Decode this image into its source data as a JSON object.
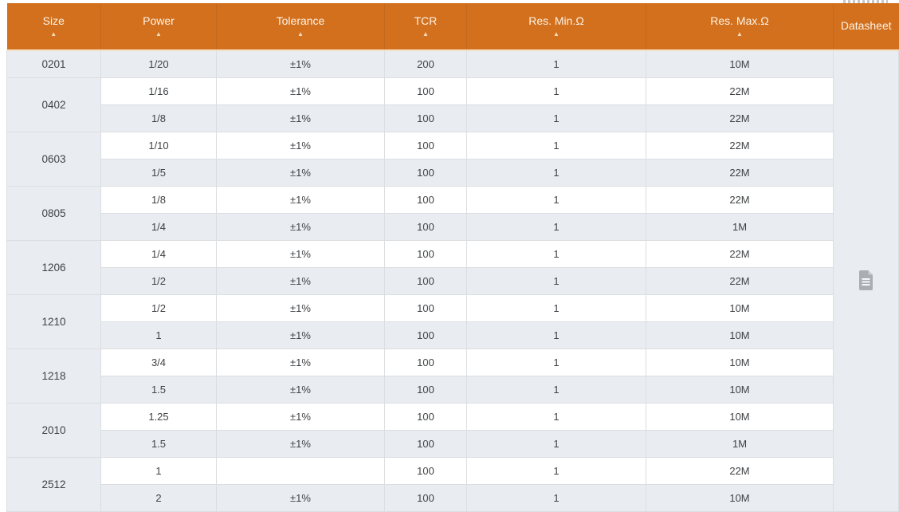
{
  "theme": {
    "header_bg": "#d2701d",
    "header_text": "#fdf3e6",
    "sort_icon_color": "#f6ddba",
    "header_underline": "#f6e0c4",
    "row_bg": "#ffffff",
    "row_alt_bg": "#e9edf1",
    "border": "#dbdee1",
    "cell_text": "#3f4245",
    "icon_fill": "#a9aeb4",
    "icon_fold": "#c9cdd1"
  },
  "table": {
    "sort_icon": "▲",
    "datasheet_icon": "document-icon",
    "columns": [
      {
        "id": "size",
        "label": "Size",
        "sortable": true
      },
      {
        "id": "power",
        "label": "Power",
        "sortable": true
      },
      {
        "id": "tolerance",
        "label": "Tolerance",
        "sortable": true
      },
      {
        "id": "tcr",
        "label": "TCR",
        "sortable": true
      },
      {
        "id": "res_min",
        "label": "Res. Min.Ω",
        "sortable": true
      },
      {
        "id": "res_max",
        "label": "Res. Max.Ω",
        "sortable": true
      },
      {
        "id": "datasheet",
        "label": "Datasheet",
        "sortable": false
      }
    ],
    "groups": [
      {
        "size": "0201",
        "rows": [
          [
            "1/20",
            "±1%",
            "200",
            "1",
            "10M"
          ]
        ]
      },
      {
        "size": "0402",
        "rows": [
          [
            "1/16",
            "±1%",
            "100",
            "1",
            "22M"
          ],
          [
            "1/8",
            "±1%",
            "100",
            "1",
            "22M"
          ]
        ]
      },
      {
        "size": "0603",
        "rows": [
          [
            "1/10",
            "±1%",
            "100",
            "1",
            "22M"
          ],
          [
            "1/5",
            "±1%",
            "100",
            "1",
            "22M"
          ]
        ]
      },
      {
        "size": "0805",
        "rows": [
          [
            "1/8",
            "±1%",
            "100",
            "1",
            "22M"
          ],
          [
            "1/4",
            "±1%",
            "100",
            "1",
            "1M"
          ]
        ]
      },
      {
        "size": "1206",
        "rows": [
          [
            "1/4",
            "±1%",
            "100",
            "1",
            "22M"
          ],
          [
            "1/2",
            "±1%",
            "100",
            "1",
            "22M"
          ]
        ]
      },
      {
        "size": "1210",
        "rows": [
          [
            "1/2",
            "±1%",
            "100",
            "1",
            "10M"
          ],
          [
            "1",
            "±1%",
            "100",
            "1",
            "10M"
          ]
        ]
      },
      {
        "size": "1218",
        "rows": [
          [
            "3/4",
            "±1%",
            "100",
            "1",
            "10M"
          ],
          [
            "1.5",
            "±1%",
            "100",
            "1",
            "10M"
          ]
        ]
      },
      {
        "size": "2010",
        "rows": [
          [
            "1.25",
            "±1%",
            "100",
            "1",
            "10M"
          ],
          [
            "1.5",
            "±1%",
            "100",
            "1",
            "1M"
          ]
        ]
      },
      {
        "size": "2512",
        "rows": [
          [
            "1",
            "",
            "100",
            "1",
            "22M"
          ],
          [
            "2",
            "±1%",
            "100",
            "1",
            "10M"
          ]
        ]
      }
    ]
  }
}
